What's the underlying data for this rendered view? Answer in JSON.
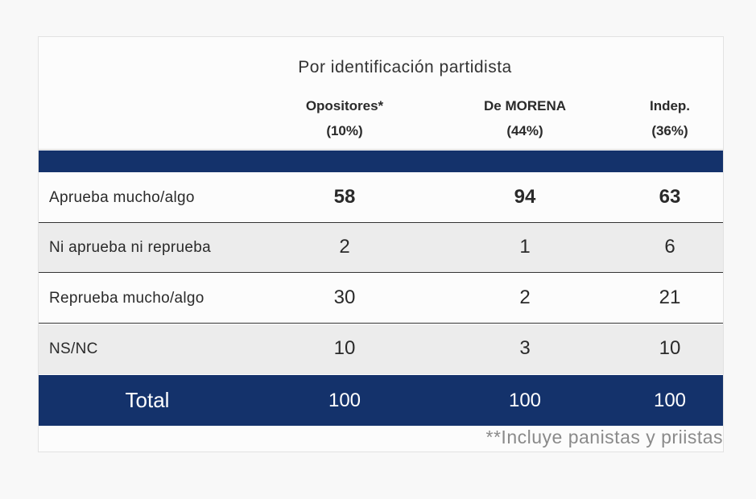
{
  "table": {
    "title": "Por identificación partidista",
    "columns": [
      {
        "name": "Opositores*",
        "share": "(10%)"
      },
      {
        "name": "De MORENA",
        "share": "(44%)"
      },
      {
        "name": "Indep.",
        "share": "(36%)"
      }
    ],
    "rows": [
      {
        "label": "Aprueba mucho/algo",
        "values": [
          "58",
          "94",
          "63"
        ]
      },
      {
        "label": "Ni aprueba ni reprueba",
        "values": [
          "2",
          "1",
          "6"
        ]
      },
      {
        "label": "Reprueba mucho/algo",
        "values": [
          "30",
          "2",
          "21"
        ]
      },
      {
        "label": "NS/NC",
        "values": [
          "10",
          "3",
          "10"
        ]
      }
    ],
    "total": {
      "label": "Total",
      "values": [
        "100",
        "100",
        "100"
      ]
    },
    "footnote": "**Incluye panistas y priistas"
  },
  "colors": {
    "navy": "#14326b",
    "alt_row": "#ececec"
  }
}
